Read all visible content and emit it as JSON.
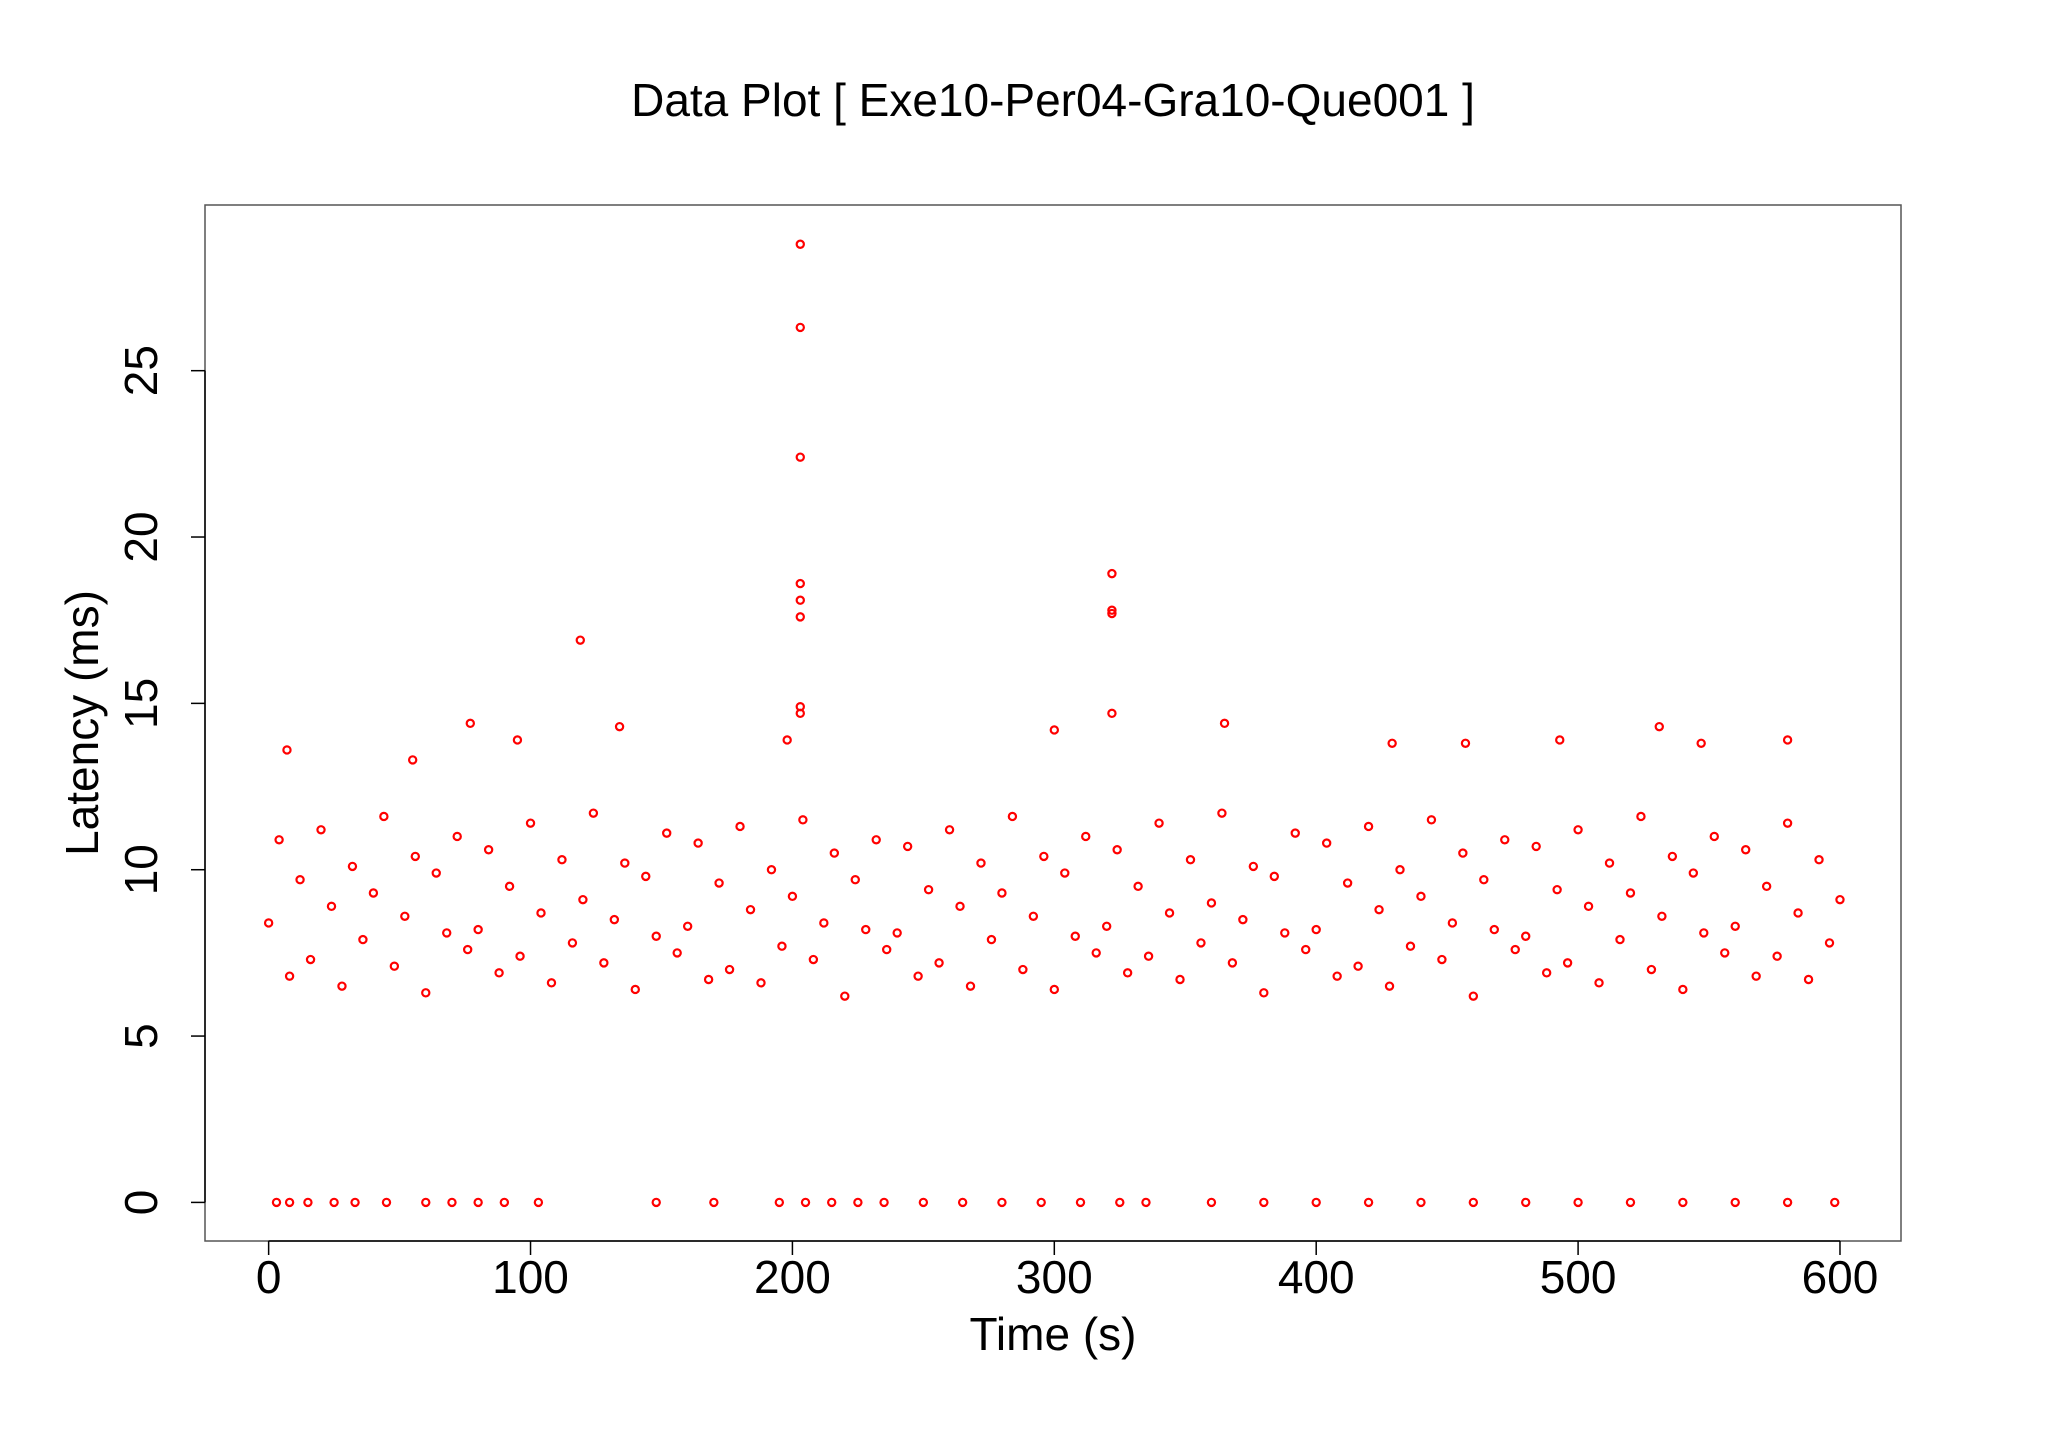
{
  "chart_data": {
    "type": "scatter",
    "title": "Data Plot [ Exe10-Per04-Gra10-Que001 ]",
    "x_label": "Time (s)",
    "y_label": "Latency (ms)",
    "xlim": [
      -24.3,
      623.3
    ],
    "ylim": [
      -1.16,
      29.98
    ],
    "xticks": [
      0,
      100,
      200,
      300,
      400,
      500,
      600
    ],
    "yticks": [
      0,
      5,
      10,
      15,
      20,
      25
    ],
    "series": [
      {
        "color": "#ff0000",
        "x": [
          0,
          4,
          8,
          12,
          16,
          20,
          24,
          28,
          32,
          36,
          40,
          44,
          48,
          52,
          56,
          60,
          64,
          68,
          72,
          76,
          80,
          84,
          88,
          92,
          96,
          100,
          104,
          108,
          112,
          116,
          120,
          124,
          128,
          132,
          136,
          140,
          144,
          148,
          152,
          156,
          160,
          164,
          168,
          172,
          176,
          180,
          184,
          188,
          192,
          196,
          200,
          204,
          208,
          212,
          216,
          220,
          224,
          228,
          232,
          236,
          240,
          244,
          248,
          252,
          256,
          260,
          264,
          268,
          272,
          276,
          280,
          284,
          288,
          292,
          296,
          300,
          304,
          308,
          312,
          316,
          320,
          324,
          328,
          332,
          336,
          340,
          344,
          348,
          352,
          356,
          360,
          364,
          368,
          372,
          376,
          380,
          384,
          388,
          392,
          396,
          400,
          404,
          408,
          412,
          416,
          420,
          424,
          428,
          432,
          436,
          440,
          444,
          448,
          452,
          456,
          460,
          464,
          468,
          472,
          476,
          480,
          484,
          488,
          492,
          496,
          500,
          504,
          508,
          512,
          516,
          520,
          524,
          528,
          532,
          536,
          540,
          544,
          548,
          552,
          556,
          560,
          564,
          568,
          572,
          576,
          580,
          584,
          588,
          592,
          596,
          600,
          203,
          203,
          203,
          203,
          203,
          203,
          203,
          203,
          322,
          322,
          322,
          322,
          119,
          77,
          134,
          365,
          300,
          531,
          95,
          493,
          580,
          198,
          429,
          547,
          457,
          7,
          55,
          3,
          8,
          15,
          25,
          33,
          45,
          60,
          70,
          80,
          90,
          103,
          148,
          170,
          195,
          205,
          215,
          225,
          235,
          250,
          265,
          280,
          295,
          310,
          325,
          335,
          360,
          380,
          400,
          420,
          440,
          460,
          480,
          500,
          520,
          540,
          560,
          580,
          598
        ],
        "values": [
          8.4,
          10.9,
          6.8,
          9.7,
          7.3,
          11.2,
          8.9,
          6.5,
          10.1,
          7.9,
          9.3,
          11.6,
          7.1,
          8.6,
          10.4,
          6.3,
          9.9,
          8.1,
          11.0,
          7.6,
          8.2,
          10.6,
          6.9,
          9.5,
          7.4,
          11.4,
          8.7,
          6.6,
          10.3,
          7.8,
          9.1,
          11.7,
          7.2,
          8.5,
          10.2,
          6.4,
          9.8,
          8.0,
          11.1,
          7.5,
          8.3,
          10.8,
          6.7,
          9.6,
          7.0,
          11.3,
          8.8,
          6.6,
          10.0,
          7.7,
          9.2,
          11.5,
          7.3,
          8.4,
          10.5,
          6.2,
          9.7,
          8.2,
          10.9,
          7.6,
          8.1,
          10.7,
          6.8,
          9.4,
          7.2,
          11.2,
          8.9,
          6.5,
          10.2,
          7.9,
          9.3,
          11.6,
          7.0,
          8.6,
          10.4,
          6.4,
          9.9,
          8.0,
          11.0,
          7.5,
          8.3,
          10.6,
          6.9,
          9.5,
          7.4,
          11.4,
          8.7,
          6.7,
          10.3,
          7.8,
          9.0,
          11.7,
          7.2,
          8.5,
          10.1,
          6.3,
          9.8,
          8.1,
          11.1,
          7.6,
          8.2,
          10.8,
          6.8,
          9.6,
          7.1,
          11.3,
          8.8,
          6.5,
          10.0,
          7.7,
          9.2,
          11.5,
          7.3,
          8.4,
          10.5,
          6.2,
          9.7,
          8.2,
          10.9,
          7.6,
          8.0,
          10.7,
          6.9,
          9.4,
          7.2,
          11.2,
          8.9,
          6.6,
          10.2,
          7.9,
          9.3,
          11.6,
          7.0,
          8.6,
          10.4,
          6.4,
          9.9,
          8.1,
          11.0,
          7.5,
          8.3,
          10.6,
          6.8,
          9.5,
          7.4,
          11.4,
          8.7,
          6.7,
          10.3,
          7.8,
          9.1,
          28.8,
          26.3,
          22.4,
          18.6,
          18.1,
          17.6,
          14.9,
          14.7,
          18.9,
          17.8,
          17.7,
          14.7,
          16.9,
          14.4,
          14.3,
          14.4,
          14.2,
          14.3,
          13.9,
          13.9,
          13.9,
          13.9,
          13.8,
          13.8,
          13.8,
          13.6,
          13.3,
          0,
          0,
          0,
          0,
          0,
          0,
          0,
          0,
          0,
          0,
          0,
          0,
          0,
          0,
          0,
          0,
          0,
          0,
          0,
          0,
          0,
          0,
          0,
          0,
          0,
          0,
          0,
          0,
          0,
          0,
          0,
          0,
          0,
          0,
          0,
          0,
          0,
          0
        ]
      }
    ]
  }
}
